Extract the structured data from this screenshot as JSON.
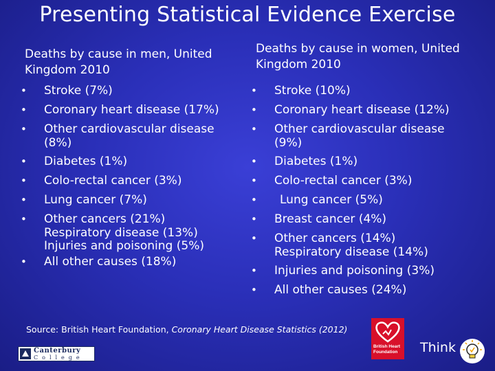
{
  "title": "Presenting Statistical Evidence Exercise",
  "men": {
    "heading": "Deaths by cause in men, United Kingdom 2010",
    "items": [
      "Stroke (7%)",
      "Coronary heart disease (17%)",
      "Other cardiovascular disease",
      "(8%)",
      "Diabetes (1%)",
      "Colo-rectal cancer (3%)",
      "Lung cancer (7%)",
      "Other cancers (21%)",
      "Respiratory disease (13%)",
      "Injuries and poisoning (5%)",
      "All other causes (18%)"
    ]
  },
  "women": {
    "heading": "Deaths by cause in women, United Kingdom 2010",
    "items": [
      "Stroke (10%)",
      "Coronary heart disease (12%)",
      "Other cardiovascular disease",
      "(9%)",
      "Diabetes (1%)",
      "Colo-rectal cancer (3%)",
      "Lung cancer (5%)",
      "Breast cancer (4%)",
      "Other cancers (14%)",
      "Respiratory disease (14%)",
      "Injuries and poisoning (3%)",
      "All other causes (24%)"
    ]
  },
  "source": {
    "prefix": "Source: British Heart Foundation, ",
    "publication": "Coronary Heart Disease Statistics (2012)"
  },
  "logos": {
    "college_name": "Canterbury",
    "college_word": "College",
    "bhf_line1": "British Heart",
    "bhf_line2": "Foundation"
  },
  "think_label": "Think"
}
